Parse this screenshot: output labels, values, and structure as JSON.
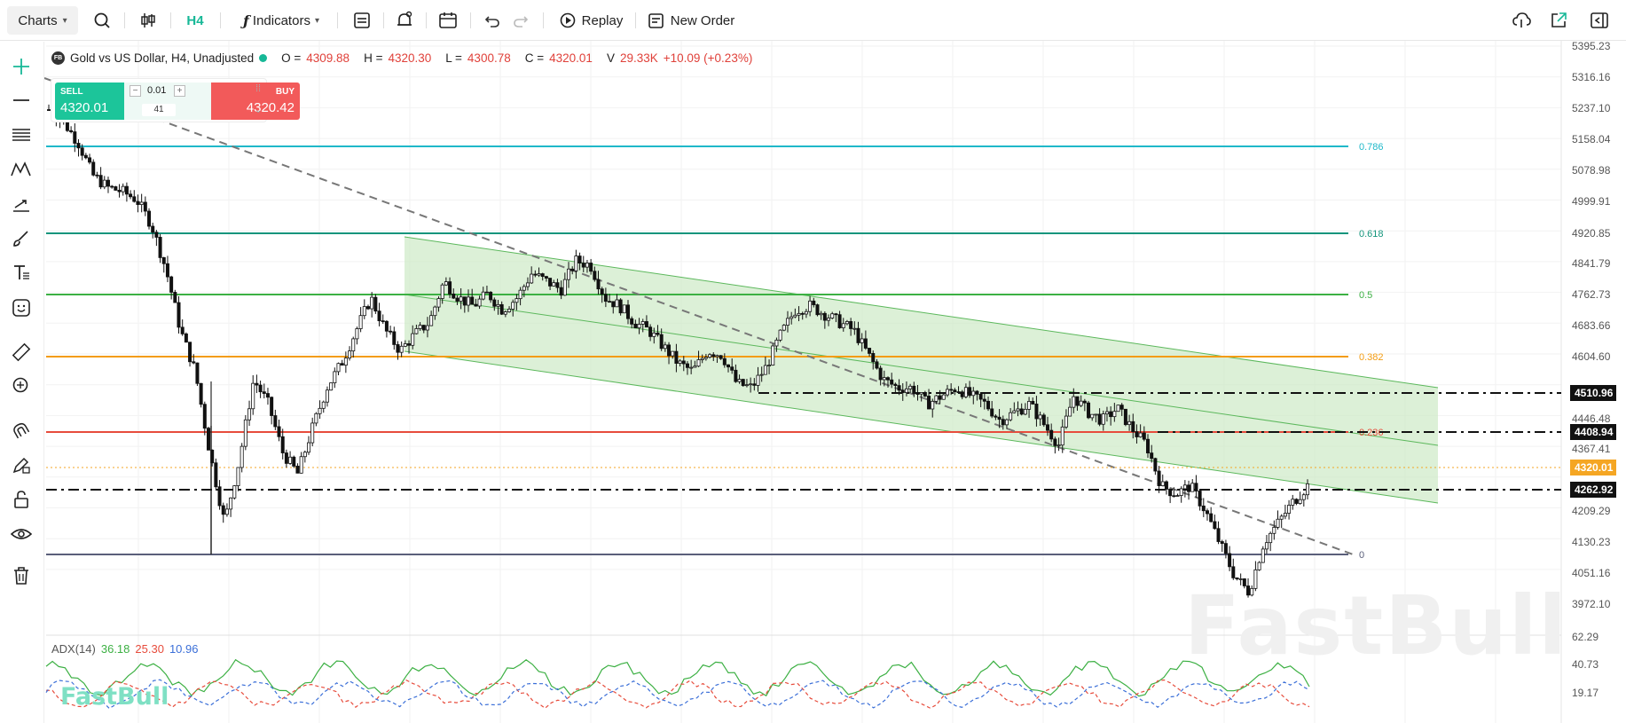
{
  "toolbar": {
    "charts_label": "Charts",
    "timeframe": "H4",
    "indicators_label": "Indicators",
    "replay_label": "Replay",
    "new_order_label": "New Order"
  },
  "legend": {
    "symbol_badge": "FB",
    "symbol": "Gold vs US Dollar, H4, Unadjusted",
    "open_label": "O =",
    "open": "4309.88",
    "high_label": "H =",
    "high": "4320.30",
    "low_label": "L =",
    "low": "4300.78",
    "close_label": "C =",
    "close": "4320.01",
    "volume_label": "V",
    "volume": "29.33K",
    "change": "+10.09 (+0.23%)"
  },
  "trade": {
    "sell_label": "SELL",
    "sell_price": "4320.01",
    "buy_label": "BUY",
    "buy_price": "4320.42",
    "lot": "0.01",
    "qty": "41",
    "minus": "−",
    "plus": "+"
  },
  "price_axis": {
    "ticks": [
      "5395.23",
      "5316.16",
      "5237.10",
      "5158.04",
      "5078.98",
      "4999.91",
      "4920.85",
      "4841.79",
      "4762.73",
      "4683.66",
      "4604.60",
      "4446.48",
      "4367.41",
      "4209.29",
      "4130.23",
      "4051.16",
      "3972.10"
    ],
    "badges": [
      {
        "value": "4510.96",
        "color": "#111111"
      },
      {
        "value": "4408.94",
        "color": "#111111"
      },
      {
        "value": "4320.01",
        "color": "#f5a623"
      },
      {
        "value": "4262.92",
        "color": "#111111"
      }
    ]
  },
  "fibonacci": [
    {
      "level": "0.786",
      "color": "#1fb8c9"
    },
    {
      "level": "0.618",
      "color": "#14957c"
    },
    {
      "level": "0.5",
      "color": "#3cb043"
    },
    {
      "level": "0.382",
      "color": "#f39c12"
    },
    {
      "level": "0.236",
      "color": "#e74c3c"
    },
    {
      "level": "0",
      "color": "#5a5f7a"
    }
  ],
  "adx": {
    "label": "ADX(14)",
    "adx": "36.18",
    "adx_color": "#3cb043",
    "plus_di": "25.30",
    "plus_color": "#e74c3c",
    "minus_di": "10.96",
    "minus_color": "#3b6fd8",
    "ticks": [
      "62.29",
      "40.73",
      "19.17"
    ]
  },
  "watermark": "FastBull",
  "watermark_small": "FastBull",
  "chart_data": {
    "type": "candlestick",
    "instrument": "Gold vs US Dollar",
    "timeframe": "H4",
    "last": 4320.01,
    "high_price": 5395.23,
    "low_price": 3972.1,
    "horizontal_levels": [
      4510.96,
      4408.94,
      4262.92
    ],
    "fib_levels": [
      "0.786",
      "0.618",
      "0.5",
      "0.382",
      "0.236",
      "0"
    ],
    "adx": {
      "adx": 36.18,
      "plus_di": 25.3,
      "minus_di": 10.96
    },
    "close_path": [
      5240,
      5210,
      5160,
      5080,
      5050,
      5040,
      5020,
      4960,
      4850,
      4700,
      4600,
      4400,
      4230,
      4380,
      4580,
      4520,
      4400,
      4350,
      4460,
      4560,
      4620,
      4700,
      4780,
      4700,
      4650,
      4690,
      4720,
      4820,
      4780,
      4760,
      4790,
      4750,
      4780,
      4840,
      4820,
      4800,
      4870,
      4860,
      4780,
      4760,
      4720,
      4700,
      4660,
      4620,
      4600,
      4650,
      4640,
      4570,
      4560,
      4610,
      4690,
      4750,
      4760,
      4740,
      4720,
      4700,
      4640,
      4580,
      4560,
      4560,
      4520,
      4540,
      4560,
      4540,
      4520,
      4480,
      4500,
      4520,
      4470,
      4420,
      4540,
      4500,
      4480,
      4510,
      4460,
      4420,
      4320,
      4300,
      4320,
      4260,
      4180,
      4100,
      4060,
      4180,
      4230,
      4280,
      4320
    ]
  }
}
